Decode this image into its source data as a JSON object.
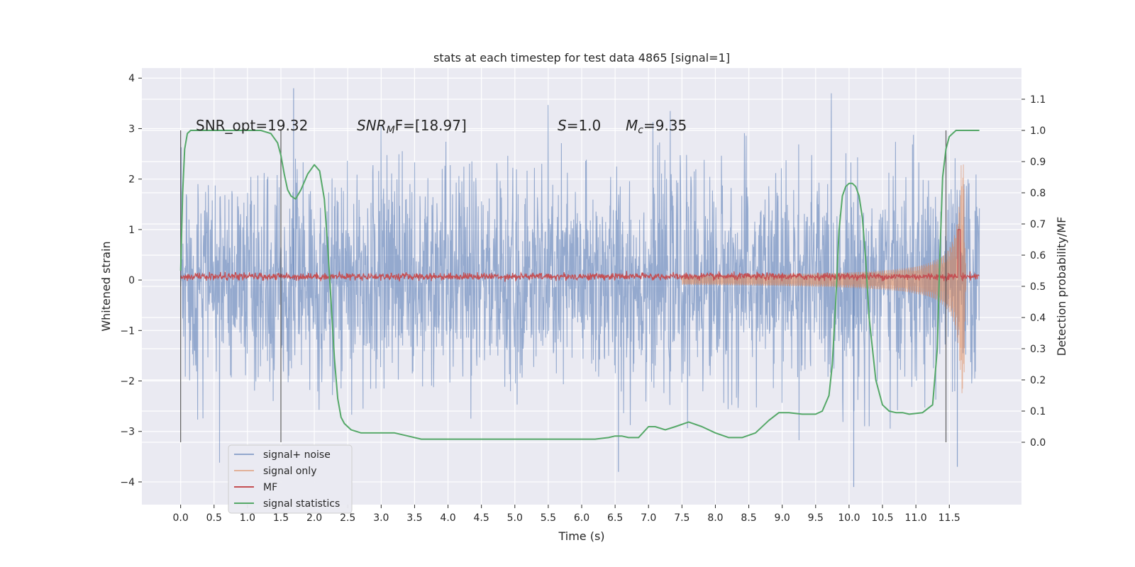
{
  "chart_data": {
    "type": "line",
    "title": "stats at each timestep for test data 4865 [signal=1]",
    "xlabel": "Time (s)",
    "ylabel": "Whitened strain",
    "ylabel_right": "Detection probability/MF",
    "xlim": [
      -0.58,
      12.58
    ],
    "ylim": [
      -4.45,
      4.2
    ],
    "ylim_right": [
      -0.2,
      1.2
    ],
    "x_ticks": [
      "0.0",
      "0.5",
      "1.0",
      "1.5",
      "2.0",
      "2.5",
      "3.0",
      "3.5",
      "4.0",
      "4.5",
      "5.0",
      "5.5",
      "6.0",
      "6.5",
      "7.0",
      "7.5",
      "8.0",
      "8.5",
      "9.0",
      "9.5",
      "10.0",
      "10.5",
      "11.0",
      "11.5"
    ],
    "y_ticks": [
      "4",
      "3",
      "2",
      "1",
      "0",
      "−1",
      "−2",
      "−3",
      "−4"
    ],
    "y_right_ticks": [
      "1.1",
      "1.0",
      "0.9",
      "0.8",
      "0.7",
      "0.6",
      "0.5",
      "0.4",
      "0.3",
      "0.2",
      "0.1",
      "0.0"
    ],
    "grid": true,
    "legend_position": "lower-left",
    "annotations": {
      "snr_opt": "SNR_opt=19.32",
      "snr_mf_sym": "SNR",
      "snr_mf_sub": "M",
      "snr_mf_rest": "F=[18.97]",
      "s_sym": "S",
      "s_rest": "=1.0",
      "mc_sym": "M",
      "mc_sub": "c",
      "mc_rest": "=9.35"
    },
    "vertical_markers_s": [
      0.0,
      1.5,
      11.45
    ],
    "series": [
      {
        "name": "signal+ noise",
        "color": "#4c72b0",
        "kind": "noise",
        "t_range": [
          0.0,
          11.95
        ],
        "std": 1.05,
        "peak_abs": [
          3.8,
          -4.1
        ]
      },
      {
        "name": "signal only",
        "color": "#dd8452",
        "kind": "chirp",
        "t_merger": 11.72,
        "amp_start": 0.04,
        "amp_peak": 2.3
      },
      {
        "name": "MF",
        "color": "#c44e52",
        "kind": "mf",
        "baseline": 0.07,
        "noise_amp": 0.06,
        "spike_t": 11.65,
        "spike_value": 1.0
      },
      {
        "name": "signal statistics",
        "color": "#55a868",
        "axis": "right",
        "x": [
          0.0,
          0.03,
          0.06,
          0.1,
          0.15,
          0.2,
          0.3,
          0.5,
          0.8,
          1.0,
          1.2,
          1.35,
          1.45,
          1.5,
          1.55,
          1.6,
          1.65,
          1.72,
          1.8,
          1.9,
          2.0,
          2.08,
          2.15,
          2.2,
          2.25,
          2.3,
          2.35,
          2.4,
          2.45,
          2.55,
          2.7,
          3.0,
          3.2,
          3.4,
          3.6,
          4.0,
          4.5,
          5.0,
          5.5,
          5.9,
          6.2,
          6.4,
          6.5,
          6.6,
          6.7,
          6.85,
          7.0,
          7.1,
          7.25,
          7.4,
          7.6,
          7.8,
          8.0,
          8.2,
          8.4,
          8.6,
          8.8,
          8.95,
          9.1,
          9.3,
          9.5,
          9.6,
          9.7,
          9.75,
          9.8,
          9.85,
          9.9,
          9.95,
          10.0,
          10.05,
          10.1,
          10.15,
          10.2,
          10.25,
          10.3,
          10.4,
          10.5,
          10.6,
          10.7,
          10.8,
          10.9,
          11.1,
          11.25,
          11.32,
          11.36,
          11.4,
          11.45,
          11.5,
          11.55,
          11.6,
          11.7,
          11.8,
          11.95
        ],
        "y": [
          0.55,
          0.8,
          0.94,
          0.99,
          1.0,
          1.0,
          1.0,
          1.0,
          1.0,
          1.0,
          1.0,
          0.99,
          0.96,
          0.92,
          0.86,
          0.81,
          0.79,
          0.78,
          0.81,
          0.86,
          0.89,
          0.87,
          0.78,
          0.63,
          0.45,
          0.27,
          0.14,
          0.08,
          0.06,
          0.04,
          0.03,
          0.03,
          0.03,
          0.02,
          0.01,
          0.01,
          0.01,
          0.01,
          0.01,
          0.01,
          0.01,
          0.015,
          0.02,
          0.02,
          0.015,
          0.015,
          0.05,
          0.05,
          0.04,
          0.05,
          0.065,
          0.05,
          0.03,
          0.015,
          0.015,
          0.03,
          0.07,
          0.095,
          0.095,
          0.09,
          0.09,
          0.1,
          0.15,
          0.25,
          0.45,
          0.68,
          0.79,
          0.82,
          0.83,
          0.83,
          0.82,
          0.79,
          0.72,
          0.58,
          0.4,
          0.2,
          0.12,
          0.1,
          0.095,
          0.095,
          0.09,
          0.095,
          0.12,
          0.3,
          0.6,
          0.85,
          0.94,
          0.98,
          0.99,
          1.0,
          1.0,
          1.0,
          1.0
        ]
      }
    ]
  }
}
